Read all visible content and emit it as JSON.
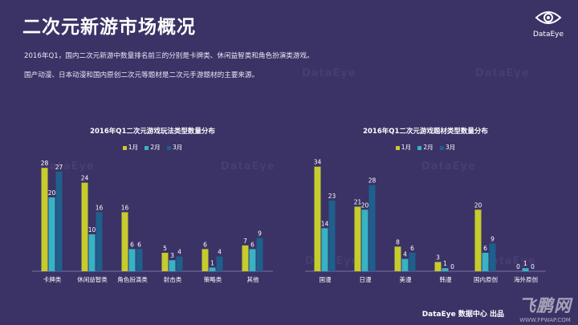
{
  "header": {
    "title": "二次元新游市场概况",
    "brand": "DataEye"
  },
  "paragraphs": [
    "2016年Q1，国内二次元新游中数量排名前三的分别是卡牌类、休闲益智类和角色扮演类游戏。",
    "国产动漫、日本动漫和国内原创二次元等题材是二次元手游题材的主要来源。"
  ],
  "watermark": "DataEye",
  "colors": {
    "background": "#3b3266",
    "series1": "#c6cc2c",
    "series2": "#36b3c4",
    "series3": "#1f5f8c"
  },
  "footer": {
    "source": "DataEye 数据中心 出品",
    "site_mark": "飞鹏网",
    "site_url": "WWW.FPWAP.COM"
  },
  "chart_data": [
    {
      "type": "bar",
      "title": "2016年Q1二次元游戏玩法类型数量分布",
      "categories": [
        "卡牌类",
        "休闲益智类",
        "角色扮演类",
        "射击类",
        "策略类",
        "其他"
      ],
      "series": [
        {
          "name": "1月",
          "values": [
            28,
            24,
            16,
            5,
            6,
            7
          ]
        },
        {
          "name": "2月",
          "values": [
            20,
            10,
            6,
            3,
            1,
            6
          ]
        },
        {
          "name": "3月",
          "values": [
            27,
            16,
            6,
            4,
            4,
            9
          ]
        }
      ],
      "ylim": [
        0,
        30
      ],
      "grid": false,
      "legend": "top-center"
    },
    {
      "type": "bar",
      "title": "2016年Q1二次元游戏题材类型数量分布",
      "categories": [
        "国漫",
        "日漫",
        "美漫",
        "韩漫",
        "国内原创",
        "海外原创"
      ],
      "series": [
        {
          "name": "1月",
          "values": [
            34,
            21,
            8,
            3,
            20,
            0
          ]
        },
        {
          "name": "2月",
          "values": [
            14,
            20,
            4,
            1,
            6,
            1
          ]
        },
        {
          "name": "3月",
          "values": [
            23,
            28,
            6,
            0,
            9,
            0
          ]
        }
      ],
      "ylim": [
        0,
        36
      ],
      "grid": false,
      "legend": "top-center"
    }
  ]
}
